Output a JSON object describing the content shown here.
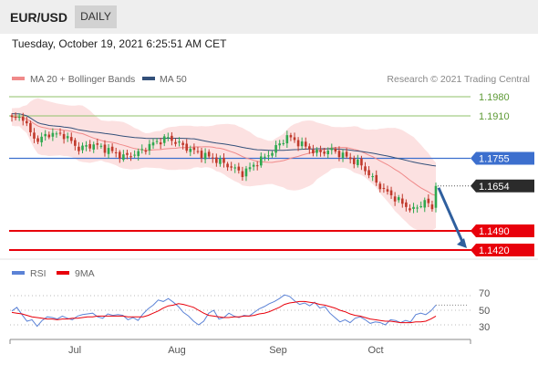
{
  "header": {
    "pair": "EUR/USD",
    "period": "DAILY"
  },
  "timestamp": "Tuesday, October 19, 2021 6:25:51 AM CET",
  "colors": {
    "up": "#2fa84f",
    "down": "#c0392b",
    "ma20": "#f08a8a",
    "bands_fill": "#fbd9d9",
    "ma50": "#33507a",
    "resistance": "#8fc26a",
    "support": "#e8000b",
    "pivot": "#3c6fce",
    "current": "#2b2b2b",
    "rsi": "#5b82d6",
    "rsi_ma": "#e8000b",
    "arrow": "#2f5f9e"
  },
  "chart_data": [
    {
      "type": "candlestick",
      "legend": [
        {
          "label": "MA 20 + Bollinger Bands",
          "color": "#f08a8a"
        },
        {
          "label": "MA 50",
          "color": "#33507a"
        }
      ],
      "credit": "Research © 2021 Trading Central",
      "x_ticks": [
        "Jul",
        "Aug",
        "Sep",
        "Oct"
      ],
      "ylim": [
        1.14,
        1.2
      ],
      "levels": [
        {
          "label": "1.1980",
          "value": 1.198,
          "kind": "resistance"
        },
        {
          "label": "1.1910",
          "value": 1.191,
          "kind": "resistance"
        },
        {
          "label": "1.1755",
          "value": 1.1755,
          "kind": "pivot"
        },
        {
          "label": "1.1654",
          "value": 1.1654,
          "kind": "current"
        },
        {
          "label": "1.1490",
          "value": 1.149,
          "kind": "support"
        },
        {
          "label": "1.1420",
          "value": 1.142,
          "kind": "support"
        }
      ],
      "forecast": {
        "from": 1.1654,
        "to": 1.143,
        "direction": "down"
      }
    },
    {
      "type": "line",
      "legend": [
        {
          "label": "RSI",
          "color": "#5b82d6"
        },
        {
          "label": "9MA",
          "color": "#e8000b"
        }
      ],
      "y_ticks": [
        "70",
        "50",
        "30"
      ],
      "ylim": [
        15,
        90
      ],
      "series": [
        {
          "name": "RSI",
          "values": [
            49,
            54,
            44,
            35,
            37,
            28,
            36,
            41,
            40,
            38,
            42,
            39,
            37,
            42,
            44,
            45,
            46,
            41,
            39,
            45,
            43,
            44,
            43,
            37,
            40,
            36,
            45,
            52,
            57,
            64,
            62,
            66,
            61,
            55,
            47,
            42,
            35,
            30,
            35,
            46,
            50,
            38,
            40,
            46,
            42,
            40,
            43,
            42,
            47,
            52,
            55,
            59,
            62,
            66,
            71,
            69,
            63,
            58,
            60,
            56,
            61,
            53,
            55,
            46,
            40,
            34,
            37,
            33,
            39,
            41,
            37,
            32,
            34,
            33,
            30,
            37,
            36,
            33,
            36,
            34,
            44,
            46,
            44,
            49,
            57
          ]
        },
        {
          "name": "9MA",
          "values": [
            47,
            46,
            45,
            43,
            41,
            40,
            39,
            38,
            38,
            37,
            38,
            38,
            39,
            39,
            40,
            41,
            41,
            42,
            42,
            42,
            42,
            42,
            42,
            41,
            41,
            41,
            41,
            43,
            46,
            49,
            53,
            56,
            57,
            59,
            58,
            56,
            54,
            50,
            46,
            43,
            42,
            41,
            40,
            40,
            41,
            41,
            42,
            42,
            43,
            45,
            46,
            48,
            51,
            54,
            58,
            60,
            61,
            62,
            62,
            61,
            60,
            58,
            57,
            55,
            53,
            50,
            48,
            45,
            43,
            42,
            40,
            38,
            37,
            36,
            35,
            35,
            34,
            33,
            33,
            33,
            34,
            34,
            35,
            38,
            42
          ]
        }
      ]
    }
  ]
}
